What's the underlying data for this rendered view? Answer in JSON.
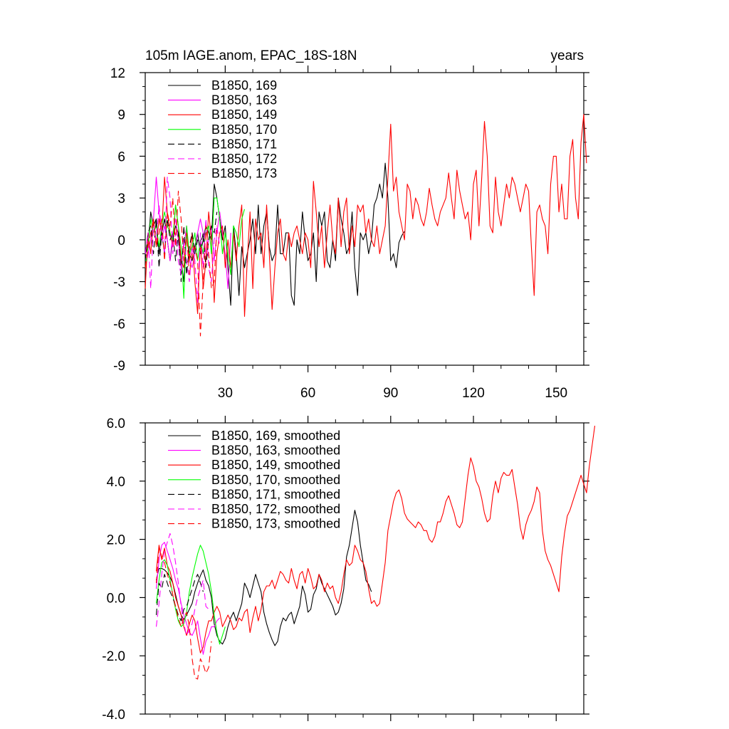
{
  "chart_data": [
    {
      "type": "line",
      "title": "105m IAGE.anom, EPAC_18S-18N",
      "right_title": "years",
      "xlim": [
        1,
        160
      ],
      "ylim": [
        -9,
        12
      ],
      "xticks": [
        30,
        60,
        90,
        120,
        150
      ],
      "yticks": [
        -9,
        -6,
        -3,
        0,
        3,
        6,
        9,
        12
      ],
      "ytick_labels": [
        "-9",
        "-6",
        "-3",
        "0",
        "3",
        "6",
        "9",
        "12"
      ],
      "legend": "top-left",
      "series": [
        {
          "name": "B1850, 169",
          "color": "#000000",
          "dash": "solid",
          "x0": 1,
          "values": [
            -1.0,
            -0.5,
            2.0,
            1.0,
            1.5,
            -1.0,
            0.5,
            1.5,
            0.0,
            -1.5,
            0.0,
            1.0,
            0.5,
            -1.5,
            -3.0,
            0.5,
            -1.0,
            -1.5,
            -0.5,
            0.5,
            -1.0,
            0.0,
            1.0,
            0.5,
            0.0,
            4.0,
            3.0,
            1.5,
            0.0,
            1.0,
            -2.0,
            -4.7,
            1.0,
            -1.0,
            -4.0,
            -0.5,
            -2.0,
            -1.0,
            0.0,
            1.5,
            -1.0,
            2.5,
            -1.0,
            1.0,
            2.0,
            -0.5,
            -1.5,
            -1.0,
            2.5,
            -1.0,
            -1.0,
            0.5,
            0.5,
            -4.0,
            -4.7,
            0.0,
            -1.0,
            2.0,
            0.0,
            -1.5,
            -1.0,
            0.5,
            -3.0,
            2.0,
            1.0,
            2.0,
            -1.5,
            -2.0,
            0.0,
            -1.5,
            3.0,
            1.5,
            0.5,
            -1.0,
            -0.5,
            2.0,
            -2.0,
            -4.0,
            0.5,
            0.0,
            0.5,
            -1.0,
            0.0,
            2.5,
            3.0,
            4.0,
            3.0,
            5.5,
            3.0,
            -1.5,
            -1.0,
            -2.0,
            -0.2,
            0.3,
            0.6
          ]
        },
        {
          "name": "B1850, 163",
          "color": "#ff00ff",
          "dash": "solid",
          "x0": 1,
          "values": [
            -2.0,
            -1.0,
            0.0,
            1.5,
            4.5,
            2.0,
            0.0,
            1.0,
            0.0,
            -1.5,
            0.5,
            1.5,
            0.0,
            -2.0,
            -0.5,
            1.0,
            -1.5,
            -2.0,
            -1.0,
            0.5,
            1.5,
            0.5,
            -1.0,
            0.0,
            1.0,
            -1.5,
            0.5,
            2.0,
            0.5,
            -1.0,
            -3.5,
            0.5
          ]
        },
        {
          "name": "B1850, 149",
          "color": "#ff0000",
          "dash": "solid",
          "x0": 1,
          "values": [
            -3.5,
            0.5,
            -1.0,
            1.5,
            -0.5,
            1.5,
            0.5,
            4.5,
            2.0,
            0.5,
            -0.5,
            2.5,
            1.0,
            -1.5,
            -2.0,
            0.5,
            -1.5,
            0.5,
            -3.0,
            -5.3,
            0.0,
            -3.5,
            -1.5,
            2.0,
            0.0,
            -4.5,
            -1.0,
            0.5,
            1.0,
            -2.0,
            0.0,
            -2.0,
            0.5,
            -1.5,
            1.0,
            2.5,
            -5.5,
            -1.5,
            2.0,
            -3.5,
            1.5,
            0.0,
            0.5,
            -2.0,
            2.5,
            -1.0,
            -5.0,
            -2.0,
            0.5,
            1.5,
            -1.0,
            -1.5,
            0.5,
            -0.5,
            0.5,
            1.0,
            0.0,
            -1.0,
            0.5,
            0.0,
            -2.0,
            4.2,
            2.0,
            -0.5,
            1.0,
            -2.0,
            0.5,
            2.5,
            0.0,
            -1.0,
            3.0,
            -0.5,
            2.0,
            3.0,
            -1.0,
            1.0,
            -0.5,
            2.5,
            2.0,
            2.5,
            0.5,
            1.5,
            0.0,
            -0.5,
            1.0,
            -1.0,
            0.0,
            1.0,
            4.5,
            8.3,
            3.5,
            4.5,
            2.0,
            1.0,
            0.0,
            4.0,
            3.5,
            1.5,
            3.0,
            2.5,
            1.5,
            1.0,
            2.0,
            3.7,
            2.5,
            1.5,
            1.0,
            2.0,
            2.5,
            3.0,
            4.8,
            3.0,
            1.5,
            5.0,
            3.5,
            2.5,
            1.5,
            2.0,
            0.0,
            4.0,
            5.0,
            1.0,
            4.5,
            8.5,
            6.0,
            1.0,
            0.5,
            4.5,
            2.0,
            1.0,
            2.5,
            4.0,
            3.0,
            4.5,
            4.0,
            3.0,
            2.0,
            3.0,
            4.0,
            3.5,
            -0.5,
            -4.0,
            2.0,
            2.5,
            1.5,
            1.0,
            -1.0,
            4.0,
            6.0,
            6.0,
            2.0,
            4.0,
            1.5,
            1.5,
            6.0,
            7.2,
            3.0,
            1.5,
            7.0,
            9.0,
            5.5
          ]
        },
        {
          "name": "B1850, 170",
          "color": "#00ff00",
          "dash": "solid",
          "x0": 1,
          "values": [
            -2.0,
            -0.5,
            1.5,
            0.5,
            1.0,
            -0.5,
            1.0,
            2.0,
            1.0,
            0.5,
            0.0,
            2.5,
            1.0,
            -0.5,
            -4.2,
            1.0,
            -1.0,
            -0.5,
            0.5,
            -1.5,
            0.0,
            -1.0,
            0.5,
            1.0,
            -1.0,
            3.0,
            3.0,
            1.5,
            -1.0,
            0.5,
            -1.0,
            -2.5,
            1.0,
            0.5,
            -0.5,
            1.5,
            2.2
          ]
        },
        {
          "name": "B1850, 171",
          "color": "#000000",
          "dash": "dashed",
          "x0": 1,
          "values": [
            -1.5,
            0.5,
            1.0,
            -1.0,
            1.5,
            -2.0,
            0.5,
            -1.0,
            1.5,
            0.0,
            0.5,
            -1.5,
            0.5,
            -3.0,
            1.0,
            -2.5,
            -0.5,
            0.5,
            -1.0,
            0.0,
            -0.5,
            0.5,
            -2.0,
            0.0,
            1.0,
            0.5,
            2.0
          ]
        },
        {
          "name": "B1850, 172",
          "color": "#ff00ff",
          "dash": "dashed",
          "x0": 1,
          "values": [
            -1.0,
            0.5,
            -3.5,
            1.0,
            0.0,
            2.5,
            0.5,
            -1.0,
            4.5,
            3.0,
            -1.0,
            0.5,
            -1.5,
            -2.5,
            0.0,
            -1.5,
            -3.0,
            -0.5,
            -1.5,
            -4.5,
            0.5,
            -2.0,
            1.5,
            -2.0,
            -3.0,
            0.0,
            1.0,
            -0.5
          ]
        },
        {
          "name": "B1850, 173",
          "color": "#ff0000",
          "dash": "dashed",
          "x0": 1,
          "values": [
            -2.0,
            -0.5,
            0.5,
            1.5,
            -0.5,
            0.5,
            1.5,
            -1.5,
            2.0,
            1.0,
            3.0,
            -0.5,
            3.5,
            1.5,
            -1.5,
            0.5,
            -2.5,
            -1.0,
            -0.5,
            -1.5,
            -6.9,
            -3.0,
            1.0,
            -1.0,
            -3.5,
            -3.0,
            1.0
          ]
        }
      ],
      "legend_entries": [
        "B1850, 169",
        "B1850, 163",
        "B1850, 149",
        "B1850, 170",
        "B1850, 171",
        "B1850, 172",
        "B1850, 173"
      ]
    },
    {
      "type": "line",
      "title": "",
      "xlim": [
        1,
        160
      ],
      "ylim": [
        -4,
        6
      ],
      "xticks": [
        30,
        60,
        90,
        120,
        150
      ],
      "yticks": [
        -4,
        -2,
        0,
        2,
        4,
        6
      ],
      "ytick_labels": [
        "-4.0",
        "-2.0",
        "0.0",
        "2.0",
        "4.0",
        "6.0"
      ],
      "legend": "top-left",
      "series": [
        {
          "name": "B1850, 169, smoothed",
          "color": "#000000",
          "dash": "solid",
          "x0": 5,
          "values": [
            0.6,
            1.0,
            1.0,
            0.95,
            0.85,
            0.7,
            0.5,
            0.1,
            -0.3,
            -0.6,
            -0.75,
            -0.6,
            -0.4,
            -0.2,
            0.2,
            0.5,
            0.75,
            0.95,
            0.6,
            0.4,
            0.0,
            -0.9,
            -1.3,
            -1.5,
            -1.6,
            -1.4,
            -1.0,
            -0.7,
            -0.5,
            -0.8,
            -0.5,
            -0.2,
            0.5,
            0.3,
            0.0,
            0.4,
            0.8,
            0.5,
            0.2,
            -0.5,
            -0.9,
            -1.2,
            -1.45,
            -1.65,
            -1.5,
            -1.0,
            -0.7,
            -0.8,
            -0.6,
            -0.5,
            -0.9,
            -0.6,
            -0.3,
            0.4,
            0.1,
            -0.5,
            -0.4,
            0.1,
            0.3,
            0.8,
            0.5,
            0.3,
            0.1,
            -0.1,
            -0.3,
            -0.6,
            -0.5,
            -0.2,
            0.3,
            1.4,
            1.8,
            2.4,
            3.0,
            2.6,
            1.8,
            1.2,
            0.6,
            0.45,
            0.2
          ]
        },
        {
          "name": "B1850, 163, smoothed",
          "color": "#ff00ff",
          "dash": "solid",
          "x0": 5,
          "values": [
            0.3,
            1.3,
            1.8,
            1.9,
            1.6,
            1.3,
            1.0,
            0.6,
            0.3,
            -0.2,
            -0.6,
            -0.9,
            -1.2,
            -1.3,
            -1.1,
            -0.8,
            -1.4,
            -1.95,
            -1.5,
            -1.3,
            -1.0,
            -1.0,
            -0.8,
            -0.7
          ]
        },
        {
          "name": "B1850, 149, smoothed",
          "color": "#ff0000",
          "dash": "solid",
          "x0": 5,
          "values": [
            0.9,
            1.8,
            1.3,
            1.7,
            1.1,
            0.9,
            0.5,
            0.0,
            -0.3,
            -0.6,
            -1.0,
            -1.3,
            -0.9,
            -0.6,
            -0.8,
            -1.4,
            -1.9,
            -1.7,
            -1.2,
            -0.8,
            -0.8,
            -0.5,
            -0.3,
            -0.5,
            -1.0,
            -0.8,
            -0.6,
            -0.8,
            -1.1,
            -1.0,
            -0.7,
            -0.8,
            -0.5,
            -0.4,
            -1.2,
            -0.7,
            -0.3,
            -0.8,
            -0.4,
            0.2,
            0.4,
            0.4,
            0.6,
            0.3,
            0.6,
            0.9,
            0.8,
            0.6,
            0.5,
            1.0,
            0.6,
            0.3,
            0.8,
            0.9,
            0.5,
            1.0,
            0.7,
            0.3,
            0.4,
            0.8,
            0.6,
            0.2,
            0.5,
            0.3,
            0.4,
            0.0,
            -0.2,
            0.2,
            0.8,
            1.3,
            1.1,
            1.2,
            1.8,
            1.6,
            1.3,
            1.2,
            0.9,
            0.3,
            -0.2,
            -0.1,
            -0.3,
            -0.2,
            0.5,
            1.2,
            2.3,
            2.8,
            3.3,
            3.6,
            3.7,
            3.4,
            2.9,
            2.7,
            2.6,
            2.5,
            2.4,
            2.6,
            2.5,
            2.3,
            2.3,
            2.0,
            1.9,
            2.1,
            2.6,
            2.6,
            2.9,
            3.3,
            3.5,
            3.2,
            2.9,
            2.5,
            2.4,
            2.6,
            3.4,
            4.2,
            4.8,
            4.5,
            4.0,
            3.8,
            3.4,
            2.9,
            2.6,
            2.7,
            3.5,
            4.0,
            3.6,
            4.1,
            4.3,
            4.2,
            4.2,
            4.4,
            3.8,
            3.2,
            2.4,
            2.0,
            2.5,
            2.8,
            3.0,
            3.3,
            3.8,
            3.6,
            2.3,
            1.6,
            1.3,
            1.1,
            0.8,
            0.5,
            0.2,
            1.4,
            2.2,
            2.8,
            3.0,
            3.3,
            3.6,
            3.9,
            4.2,
            3.9,
            3.6,
            4.5,
            5.2,
            5.9
          ]
        },
        {
          "name": "B1850, 170, smoothed",
          "color": "#00ff00",
          "dash": "solid",
          "x0": 5,
          "values": [
            -0.2,
            0.6,
            1.2,
            1.3,
            1.1,
            0.6,
            0.1,
            -0.4,
            -0.8,
            -1.0,
            -0.9,
            -0.5,
            0.2,
            0.7,
            1.1,
            1.5,
            1.8,
            1.6,
            1.2,
            0.8,
            0.2,
            -0.6,
            -1.2,
            -1.6,
            -1.3,
            -1.0
          ]
        },
        {
          "name": "B1850, 171, smoothed",
          "color": "#000000",
          "dash": "dashed",
          "x0": 5,
          "values": [
            -0.6,
            0.5,
            0.3,
            0.8,
            0.5,
            0.2,
            0.0,
            -0.3,
            -0.6,
            -0.8,
            -0.4,
            -0.3,
            0.0,
            0.3,
            0.6,
            0.8,
            0.5,
            0.2
          ]
        },
        {
          "name": "B1850, 172, smoothed",
          "color": "#ff00ff",
          "dash": "dashed",
          "x0": 5,
          "values": [
            -1.0,
            -0.2,
            0.8,
            1.6,
            1.9,
            2.2,
            1.8,
            1.2,
            0.5,
            -0.3,
            -0.9,
            -1.3,
            -1.1,
            -0.9,
            -0.4,
            0.0,
            0.3,
            0.6,
            -0.3,
            -0.4
          ]
        },
        {
          "name": "B1850, 173, smoothed",
          "color": "#ff0000",
          "dash": "dashed",
          "x0": 5,
          "values": [
            0.5,
            1.7,
            1.4,
            1.2,
            0.8,
            0.5,
            0.1,
            -0.3,
            -0.7,
            -1.0,
            -0.7,
            -0.5,
            -1.0,
            -2.1,
            -2.75,
            -2.8,
            -2.1,
            -2.3,
            -2.6,
            -2.4,
            -1.5
          ]
        }
      ],
      "legend_entries": [
        "B1850, 169, smoothed",
        "B1850, 163, smoothed",
        "B1850, 149, smoothed",
        "B1850, 170, smoothed",
        "B1850, 171, smoothed",
        "B1850, 172, smoothed",
        "B1850, 173, smoothed"
      ]
    }
  ]
}
